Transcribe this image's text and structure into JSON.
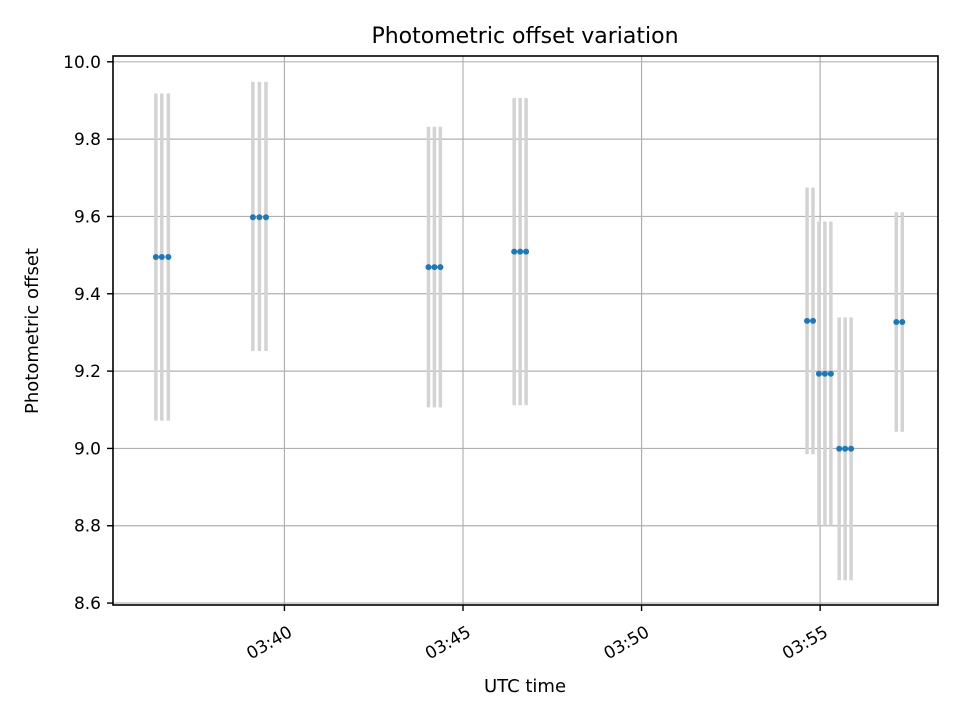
{
  "chart_data": {
    "type": "scatter",
    "title": "Photometric offset variation",
    "xlabel": "UTC time",
    "ylabel": "Photometric offset",
    "xlim": [
      "03:35:12",
      "03:58:18"
    ],
    "ylim": [
      8.595,
      10.015
    ],
    "yticks": [
      8.6,
      8.8,
      9.0,
      9.2,
      9.4,
      9.6,
      9.8,
      10.0
    ],
    "xticks": [
      "03:40",
      "03:45",
      "03:50",
      "03:55"
    ],
    "grid": true,
    "colors": {
      "point": "#1f77b4",
      "errorbar": "#d3d3d3",
      "grid": "#b0b0b0"
    },
    "points": [
      {
        "x": "03:36:24",
        "y": 9.495,
        "ylow": 9.072,
        "yhigh": 9.918
      },
      {
        "x": "03:36:34",
        "y": 9.495,
        "ylow": 9.072,
        "yhigh": 9.918
      },
      {
        "x": "03:36:45",
        "y": 9.495,
        "ylow": 9.072,
        "yhigh": 9.918
      },
      {
        "x": "03:39:07",
        "y": 9.598,
        "ylow": 9.252,
        "yhigh": 9.948
      },
      {
        "x": "03:39:18",
        "y": 9.598,
        "ylow": 9.252,
        "yhigh": 9.948
      },
      {
        "x": "03:39:29",
        "y": 9.598,
        "ylow": 9.252,
        "yhigh": 9.948
      },
      {
        "x": "03:44:02",
        "y": 9.469,
        "ylow": 9.106,
        "yhigh": 9.832
      },
      {
        "x": "03:44:12",
        "y": 9.469,
        "ylow": 9.106,
        "yhigh": 9.832
      },
      {
        "x": "03:44:22",
        "y": 9.469,
        "ylow": 9.106,
        "yhigh": 9.832
      },
      {
        "x": "03:46:26",
        "y": 9.509,
        "ylow": 9.112,
        "yhigh": 9.906
      },
      {
        "x": "03:46:36",
        "y": 9.509,
        "ylow": 9.112,
        "yhigh": 9.906
      },
      {
        "x": "03:46:46",
        "y": 9.509,
        "ylow": 9.112,
        "yhigh": 9.906
      },
      {
        "x": "03:54:38",
        "y": 9.33,
        "ylow": 8.985,
        "yhigh": 9.675
      },
      {
        "x": "03:54:48",
        "y": 9.33,
        "ylow": 8.985,
        "yhigh": 9.675
      },
      {
        "x": "03:54:58",
        "y": 9.193,
        "ylow": 8.8,
        "yhigh": 9.587
      },
      {
        "x": "03:55:08",
        "y": 9.193,
        "ylow": 8.8,
        "yhigh": 9.587
      },
      {
        "x": "03:55:18",
        "y": 9.193,
        "ylow": 8.8,
        "yhigh": 9.587
      },
      {
        "x": "03:55:32",
        "y": 8.999,
        "ylow": 8.659,
        "yhigh": 9.339
      },
      {
        "x": "03:55:42",
        "y": 8.999,
        "ylow": 8.659,
        "yhigh": 9.339
      },
      {
        "x": "03:55:52",
        "y": 8.999,
        "ylow": 8.659,
        "yhigh": 9.339
      },
      {
        "x": "03:57:08",
        "y": 9.327,
        "ylow": 9.043,
        "yhigh": 9.611
      },
      {
        "x": "03:57:18",
        "y": 9.327,
        "ylow": 9.043,
        "yhigh": 9.611
      }
    ]
  }
}
